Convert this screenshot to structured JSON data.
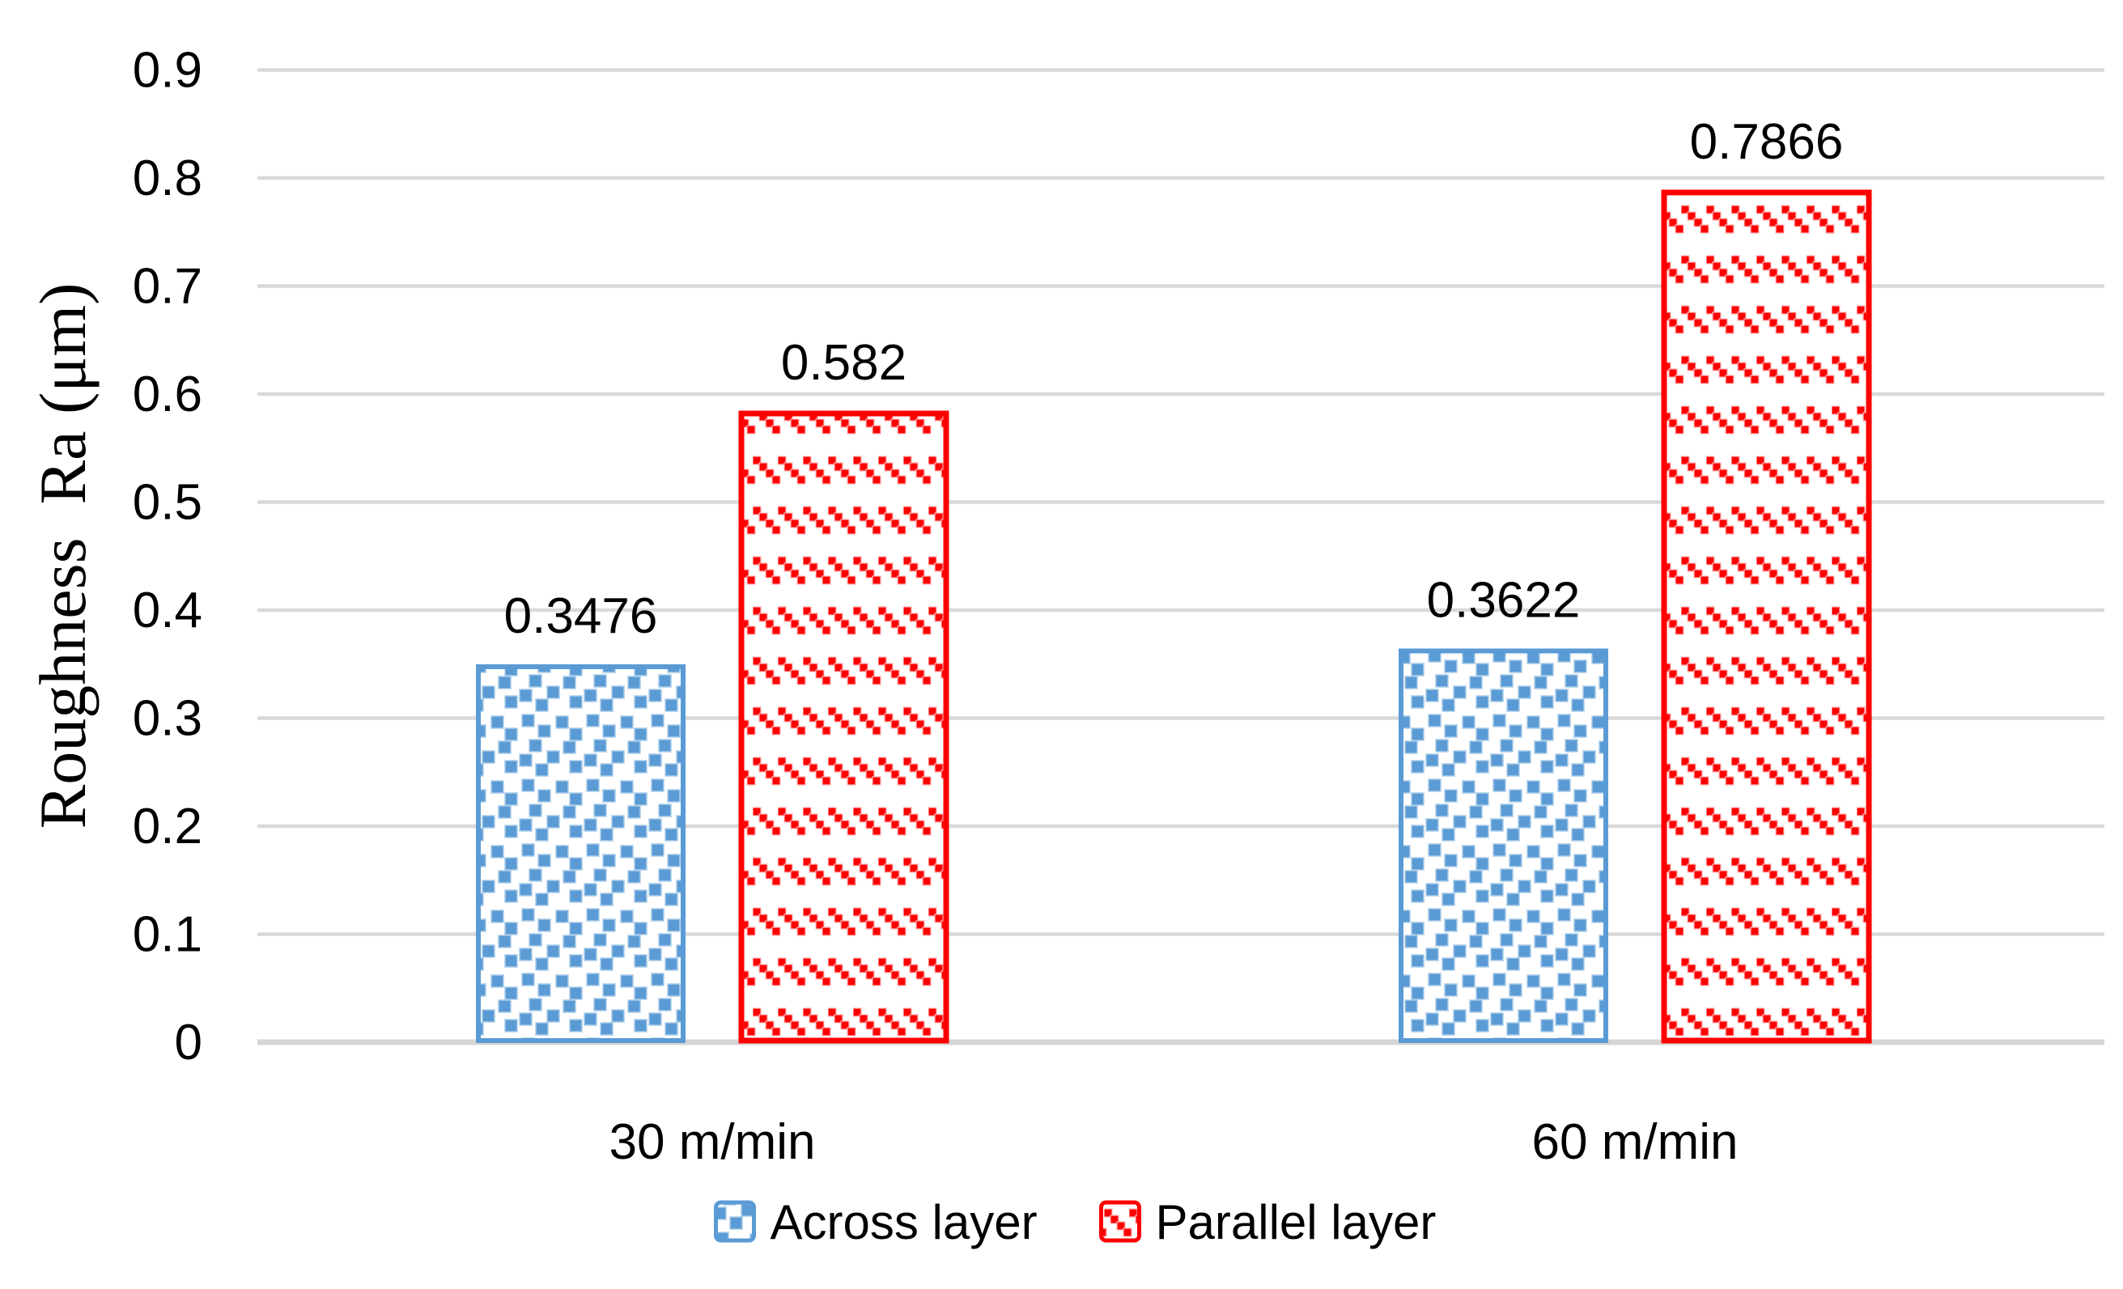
{
  "chart_data": {
    "type": "bar",
    "title": "",
    "ylabel": "Roughness  Ra (μm)",
    "xlabel": "",
    "categories": [
      "30 m/min",
      "60 m/min"
    ],
    "series": [
      {
        "name": "Across layer",
        "values": [
          0.3476,
          0.3622
        ],
        "labels": [
          "0.3476",
          "0.3622"
        ],
        "color": "#5B9BD5",
        "pattern": "confetti-squares"
      },
      {
        "name": "Parallel layer",
        "values": [
          0.582,
          0.7866
        ],
        "labels": [
          "0.582",
          "0.7866"
        ],
        "color": "#FF0000",
        "pattern": "diagonal-dash"
      }
    ],
    "ylim": [
      0,
      0.9
    ],
    "ytick_step": 0.1,
    "ytick_labels": [
      "0",
      "0.1",
      "0.2",
      "0.3",
      "0.4",
      "0.5",
      "0.6",
      "0.7",
      "0.8",
      "0.9"
    ],
    "grid": true,
    "gridline_color": "#D9D9D9",
    "axis_line_color": "#D5D5D5",
    "text_color": "#000000",
    "legend_position": "bottom"
  }
}
